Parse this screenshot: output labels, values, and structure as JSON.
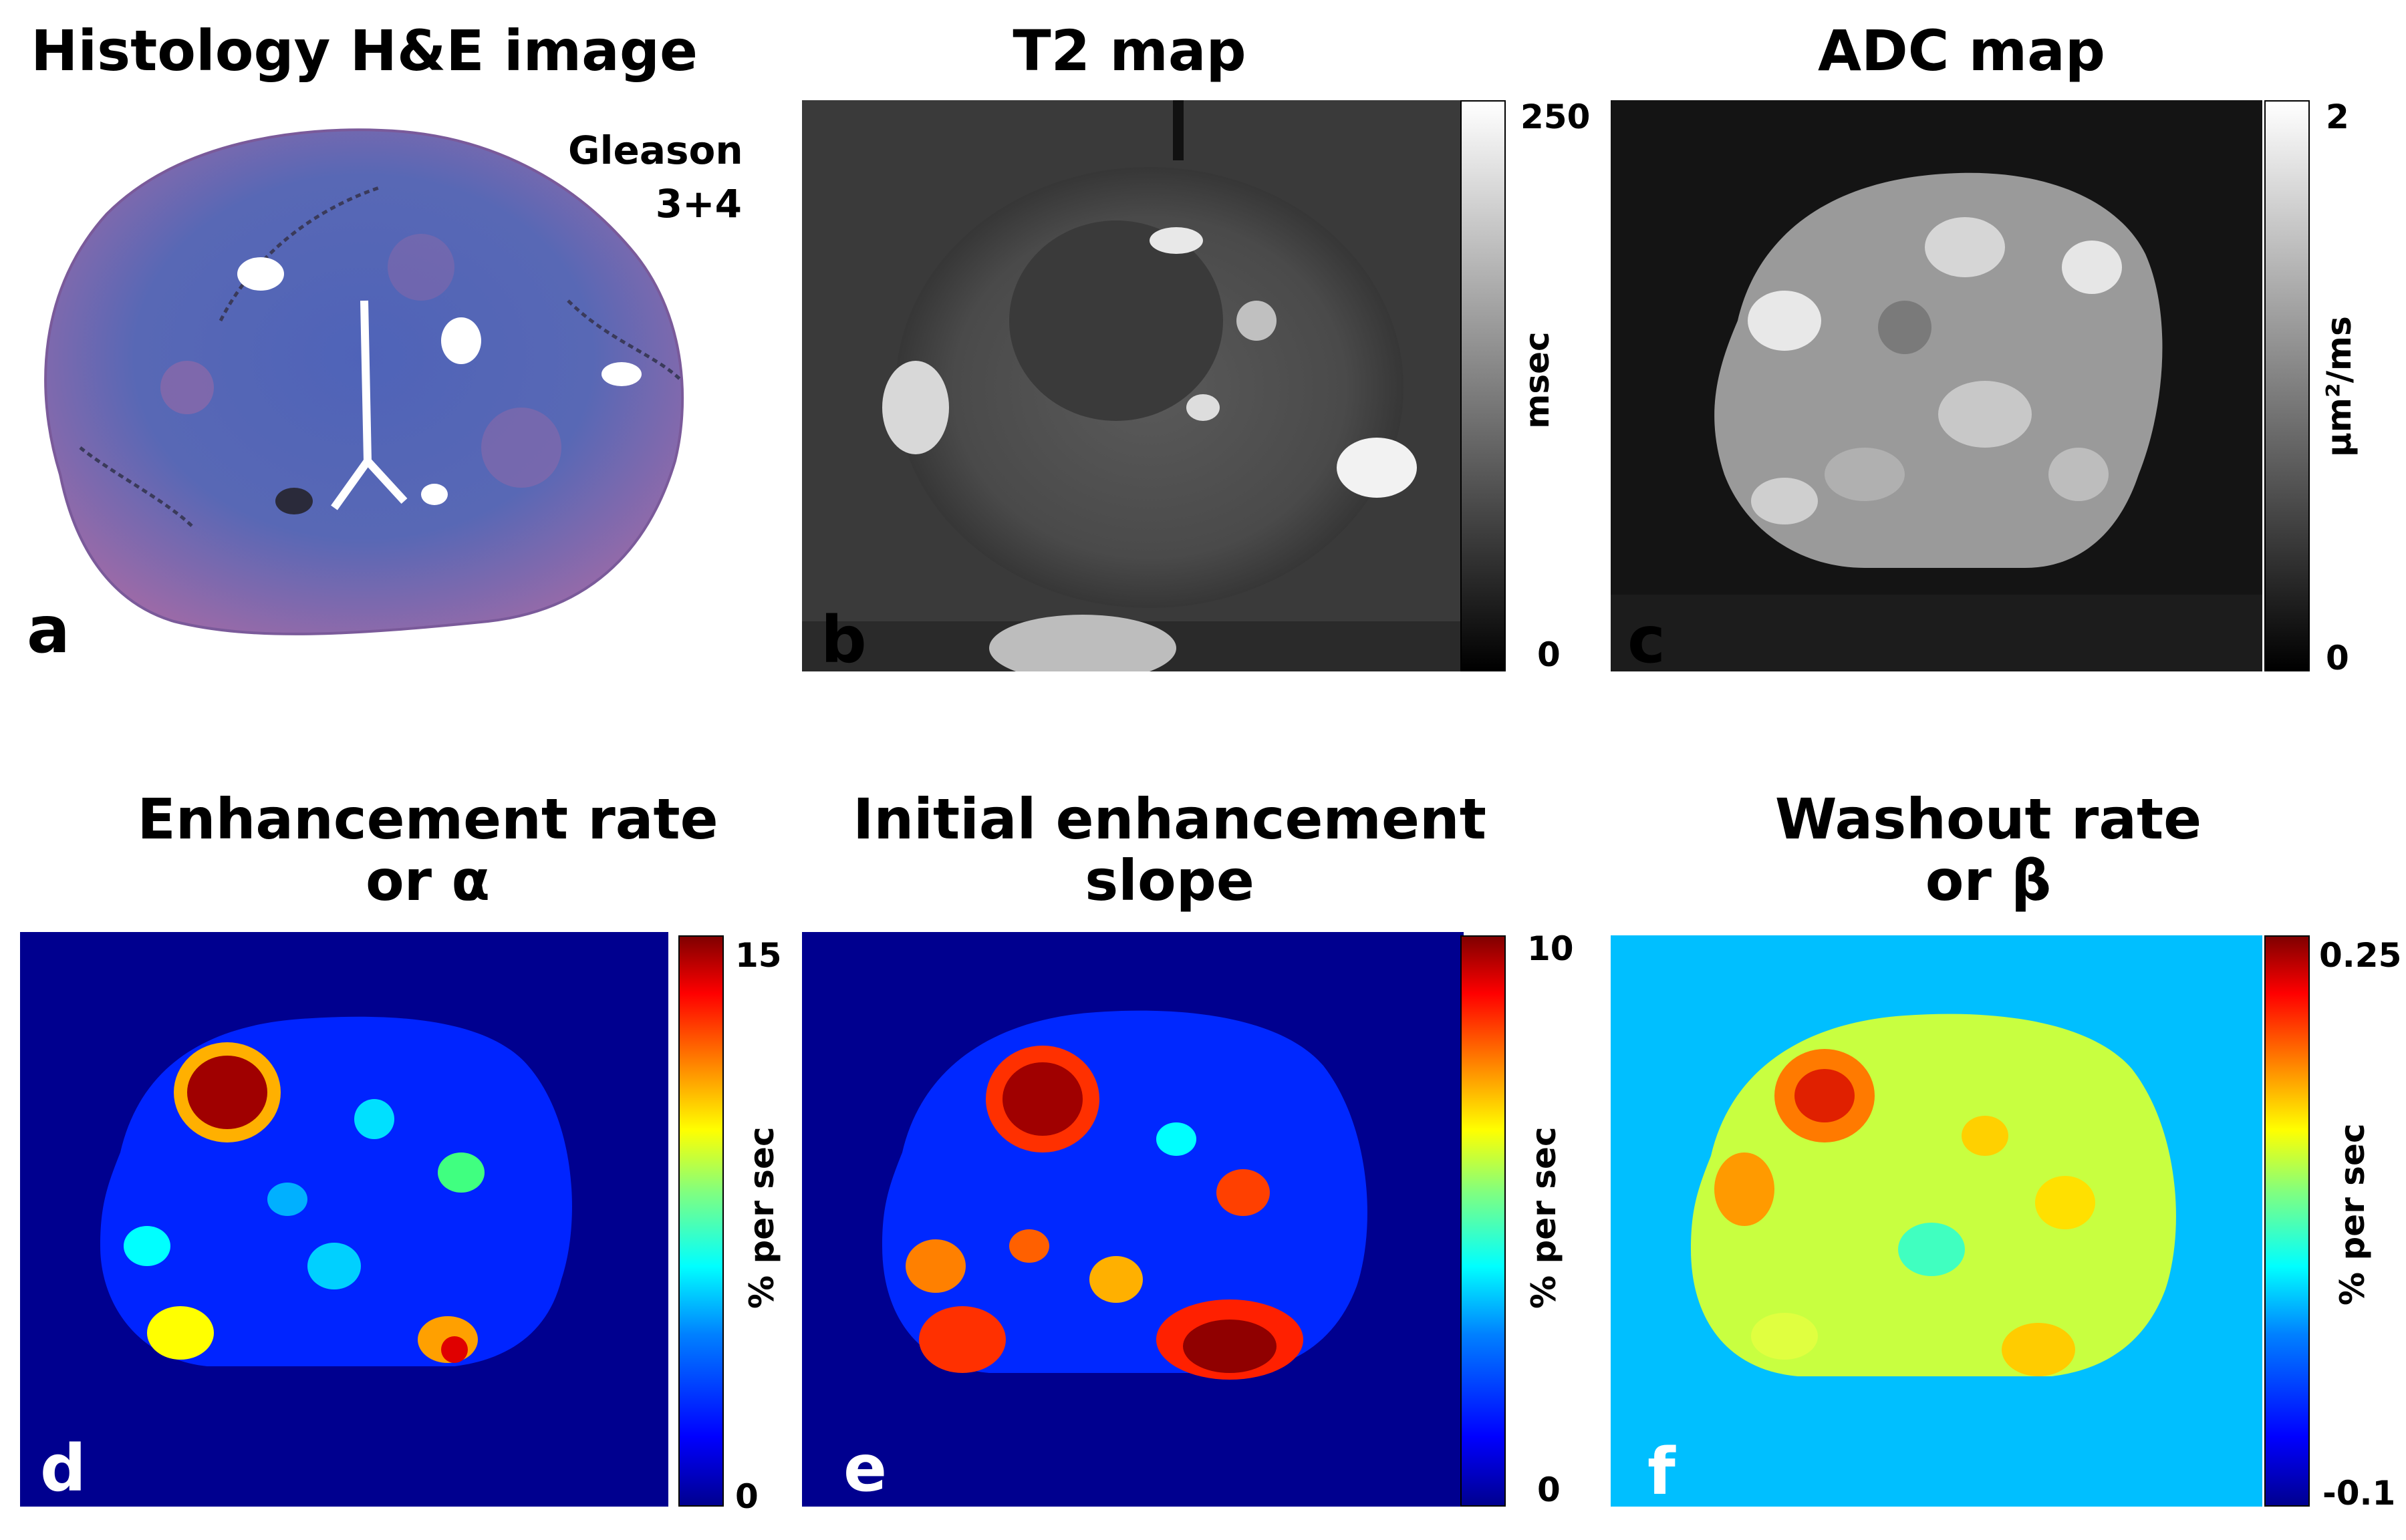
{
  "panels": {
    "a": {
      "letter": "a",
      "title": "Histology H&E image",
      "annotation_line1": "Gleason",
      "annotation_line2": "3+4"
    },
    "b": {
      "letter": "b",
      "title": "T2 map",
      "cbar_max": "250",
      "cbar_min": "0",
      "unit": "msec"
    },
    "c": {
      "letter": "c",
      "title": "ADC map",
      "cbar_max": "2",
      "cbar_min": "0",
      "unit": "µm²/ms"
    },
    "d": {
      "letter": "d",
      "title_line1": "Enhancement rate",
      "title_line2": "or α",
      "cbar_max": "15",
      "cbar_min": "0",
      "unit": "% per sec"
    },
    "e": {
      "letter": "e",
      "title_line1": "Initial enhancement",
      "title_line2": "slope",
      "cbar_max": "10",
      "cbar_min": "0",
      "unit": "% per sec"
    },
    "f": {
      "letter": "f",
      "title_line1": "Washout rate",
      "title_line2": "or β",
      "cbar_max": "0.25",
      "cbar_min": "-0.1",
      "unit": "% per sec"
    }
  },
  "colors": {
    "he_tissue": "#5a6ab8",
    "he_pink": "#b06aa0",
    "jet_background": "#00008f",
    "washout_background": "#00bfff"
  }
}
